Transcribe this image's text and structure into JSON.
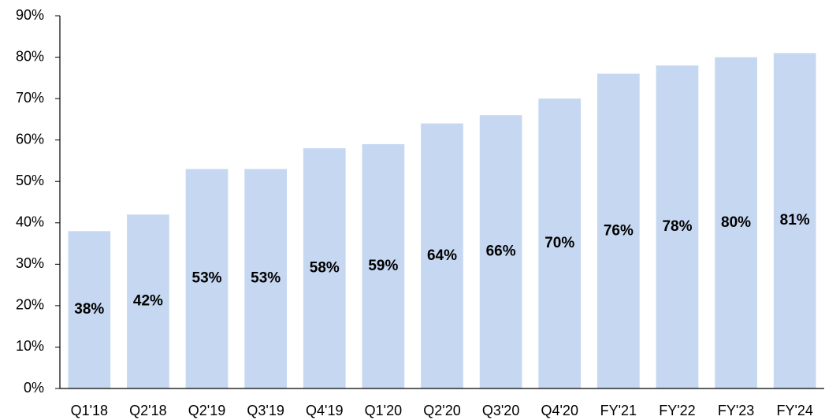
{
  "chart_data": {
    "type": "bar",
    "categories": [
      "Q1'18",
      "Q2'18",
      "Q2'19",
      "Q3'19",
      "Q4'19",
      "Q1'20",
      "Q2'20",
      "Q3'20",
      "Q4'20",
      "FY'21",
      "FY'22",
      "FY'23",
      "FY'24"
    ],
    "values": [
      38,
      42,
      53,
      53,
      58,
      59,
      64,
      66,
      70,
      76,
      78,
      80,
      81
    ],
    "value_labels": [
      "38%",
      "42%",
      "53%",
      "53%",
      "58%",
      "59%",
      "64%",
      "66%",
      "70%",
      "76%",
      "78%",
      "80%",
      "81%"
    ],
    "color": "#c6d8f1",
    "ylim": [
      0,
      90
    ],
    "yticks": [
      {
        "value": 0,
        "label": "0%"
      },
      {
        "value": 10,
        "label": "10%"
      },
      {
        "value": 20,
        "label": "20%"
      },
      {
        "value": 30,
        "label": "30%"
      },
      {
        "value": 40,
        "label": "40%"
      },
      {
        "value": 50,
        "label": "50%"
      },
      {
        "value": 60,
        "label": "60%"
      },
      {
        "value": 70,
        "label": "70%"
      },
      {
        "value": 80,
        "label": "80%"
      },
      {
        "value": 90,
        "label": "90%"
      }
    ],
    "grid": false
  }
}
